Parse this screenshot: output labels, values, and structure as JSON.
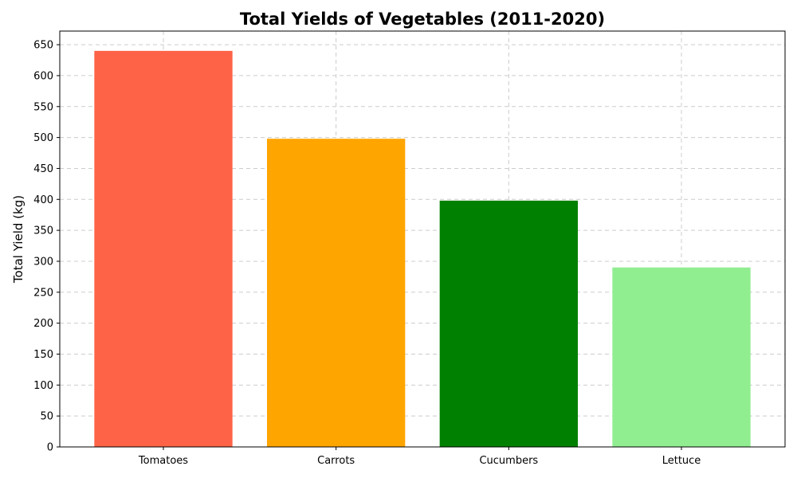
{
  "chart_data": {
    "type": "bar",
    "title": "Total Yields of Vegetables (2011-2020)",
    "xlabel": "",
    "ylabel": "Total Yield (kg)",
    "categories": [
      "Tomatoes",
      "Carrots",
      "Cucumbers",
      "Lettuce"
    ],
    "values": [
      640,
      498,
      398,
      290
    ],
    "colors": [
      "#FF6347",
      "#FFA500",
      "#008000",
      "#90EE90"
    ],
    "ylim": [
      0,
      672
    ],
    "yticks": [
      0,
      50,
      100,
      150,
      200,
      250,
      300,
      350,
      400,
      450,
      500,
      550,
      600,
      650
    ],
    "grid": true,
    "grid_color": "#cccccc",
    "legend": "none"
  }
}
